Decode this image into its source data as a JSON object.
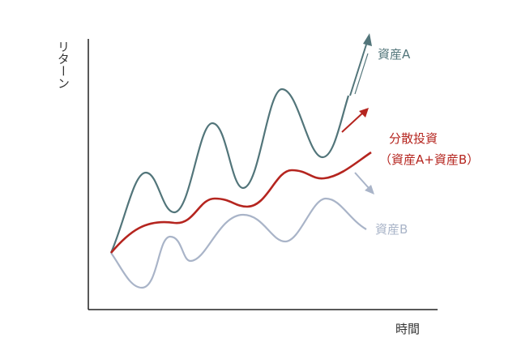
{
  "axes": {
    "y_label": "リターン",
    "x_label": "時間"
  },
  "labels": {
    "asset_a": "資産A",
    "diversified": "分散投資",
    "diversified_note": "（資産A+資産B）",
    "asset_b": "資産B"
  }
}
